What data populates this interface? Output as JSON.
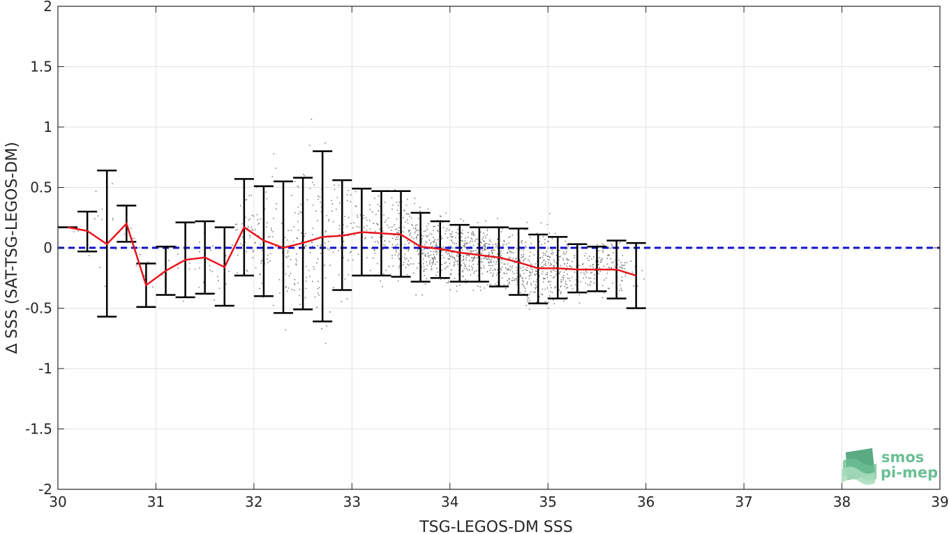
{
  "chart_data": {
    "type": "scatter",
    "xlabel": "TSG-LEGOS-DM SSS",
    "ylabel": "∆ SSS (SAT-TSG-LEGOS-DM)",
    "xlim": [
      30,
      39
    ],
    "ylim": [
      -2,
      2
    ],
    "x_ticks": [
      "30",
      "31",
      "32",
      "33",
      "34",
      "35",
      "36",
      "37",
      "38",
      "39"
    ],
    "y_ticks": [
      "-2",
      "-1.5",
      "-1",
      "-0.5",
      "0",
      "0.5",
      "1",
      "1.5",
      "2"
    ],
    "grid": true,
    "colors": {
      "scatter": "#808080",
      "mean_line": "#e8141c",
      "error_bars": "#000000",
      "zero_line": "#1010d0"
    },
    "reference_line": {
      "y": 0,
      "style": "dashed"
    },
    "series": [
      {
        "type": "errorbar",
        "x": [
          30.1,
          30.3,
          30.5,
          30.7,
          30.9,
          31.1,
          31.3,
          31.5,
          31.7,
          31.9,
          32.1,
          32.3,
          32.5,
          32.7,
          32.9,
          33.1,
          33.3,
          33.5,
          33.7,
          33.9,
          34.1,
          34.3,
          34.5,
          34.7,
          34.9,
          35.1,
          35.3,
          35.5,
          35.7,
          35.9
        ],
        "mean": [
          0.17,
          0.14,
          0.03,
          0.2,
          -0.31,
          -0.19,
          -0.1,
          -0.08,
          -0.16,
          0.17,
          0.06,
          0.0,
          0.04,
          0.09,
          0.1,
          0.13,
          0.12,
          0.11,
          0.01,
          -0.01,
          -0.04,
          -0.06,
          -0.08,
          -0.12,
          -0.17,
          -0.17,
          -0.18,
          -0.18,
          -0.18,
          -0.23
        ],
        "lower": [
          0.17,
          -0.03,
          -0.57,
          0.05,
          -0.49,
          -0.39,
          -0.41,
          -0.38,
          -0.48,
          -0.23,
          -0.4,
          -0.54,
          -0.51,
          -0.61,
          -0.35,
          -0.23,
          -0.23,
          -0.24,
          -0.28,
          -0.25,
          -0.28,
          -0.28,
          -0.32,
          -0.39,
          -0.46,
          -0.42,
          -0.37,
          -0.36,
          -0.42,
          -0.5
        ],
        "upper": [
          0.17,
          0.3,
          0.64,
          0.35,
          -0.13,
          0.01,
          0.21,
          0.22,
          0.17,
          0.57,
          0.51,
          0.55,
          0.58,
          0.8,
          0.56,
          0.49,
          0.47,
          0.47,
          0.29,
          0.22,
          0.19,
          0.17,
          0.17,
          0.16,
          0.11,
          0.09,
          0.03,
          0.01,
          0.06,
          0.04
        ]
      }
    ]
  },
  "logo": {
    "line1": "smos",
    "line2": "pi-mep"
  }
}
